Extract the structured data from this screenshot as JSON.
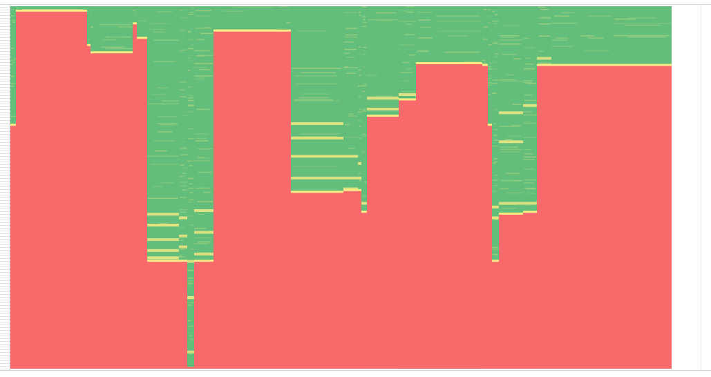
{
  "chart_data": {
    "type": "heatmap",
    "colors": {
      "high": "#63be7b",
      "mid": "#ffeb84",
      "low": "#f8696b"
    },
    "value_range": [
      0,
      1
    ],
    "rows": 520,
    "columns": [
      {
        "fill_top": 0.33,
        "wisps": []
      },
      {
        "fill_top": 0.015,
        "wisps": [
          [
            0.02,
            0.5
          ]
        ]
      },
      {
        "fill_top": 0.015,
        "wisps": []
      },
      {
        "fill_top": 0.11,
        "wisps": []
      },
      {
        "fill_top": 0.13,
        "wisps": []
      },
      {
        "fill_top": 0.13,
        "wisps": []
      },
      {
        "fill_top": 0.05,
        "wisps": []
      },
      {
        "fill_top": 0.05,
        "wisps": []
      },
      {
        "fill_top": 0.09,
        "wisps": []
      },
      {
        "fill_top": 0.705,
        "wisps": [
          [
            0.57,
            0.5
          ],
          [
            0.6,
            0.4
          ],
          [
            0.64,
            0.6
          ],
          [
            0.67,
            0.5
          ],
          [
            0.69,
            0.45
          ]
        ]
      },
      {
        "fill_top": 0.705,
        "wisps": [
          [
            0.58,
            0.45
          ],
          [
            0.63,
            0.55
          ],
          [
            0.66,
            0.5
          ]
        ]
      },
      {
        "fill_top": 0.995,
        "wisps": [
          [
            0.7,
            0.5
          ],
          [
            0.8,
            0.4
          ],
          [
            0.95,
            0.6
          ]
        ]
      },
      {
        "fill_top": 0.705,
        "wisps": [
          [
            0.56,
            0.45
          ],
          [
            0.62,
            0.5
          ],
          [
            0.68,
            0.55
          ]
        ]
      },
      {
        "fill_top": 0.07,
        "wisps": []
      },
      {
        "fill_top": 0.07,
        "wisps": []
      },
      {
        "fill_top": 0.515,
        "wisps": [
          [
            0.32,
            0.45
          ],
          [
            0.36,
            0.5
          ],
          [
            0.41,
            0.45
          ],
          [
            0.47,
            0.55
          ]
        ]
      },
      {
        "fill_top": 0.51,
        "wisps": [
          [
            0.41,
            0.5
          ],
          [
            0.47,
            0.55
          ],
          [
            0.5,
            0.5
          ]
        ]
      },
      {
        "fill_top": 0.51,
        "wisps": [
          [
            0.43,
            0.45
          ],
          [
            0.47,
            0.5
          ]
        ]
      },
      {
        "fill_top": 0.57,
        "wisps": [
          [
            0.54,
            0.5
          ]
        ]
      },
      {
        "fill_top": 0.305,
        "wisps": [
          [
            0.25,
            0.5
          ],
          [
            0.28,
            0.5
          ]
        ]
      },
      {
        "fill_top": 0.26,
        "wisps": [
          [
            0.24,
            0.5
          ]
        ]
      },
      {
        "fill_top": 0.16,
        "wisps": []
      },
      {
        "fill_top": 0.16,
        "wisps": []
      },
      {
        "fill_top": 0.165,
        "wisps": []
      },
      {
        "fill_top": 0.33,
        "wisps": [
          [
            0.33,
            0.6
          ]
        ]
      },
      {
        "fill_top": 0.705,
        "wisps": [
          [
            0.55,
            0.5
          ],
          [
            0.58,
            0.4
          ]
        ]
      },
      {
        "fill_top": 0.575,
        "wisps": [
          [
            0.29,
            0.5
          ],
          [
            0.37,
            0.45
          ],
          [
            0.54,
            0.55
          ]
        ]
      },
      {
        "fill_top": 0.57,
        "wisps": [
          [
            0.27,
            0.45
          ],
          [
            0.54,
            0.5
          ]
        ]
      },
      {
        "fill_top": 0.165,
        "wisps": [
          [
            0.14,
            0.6
          ]
        ]
      },
      {
        "fill_top": 0.165,
        "wisps": []
      },
      {
        "fill_top": 0.165,
        "wisps": []
      },
      {
        "fill_top": 0.165,
        "wisps": []
      }
    ]
  }
}
